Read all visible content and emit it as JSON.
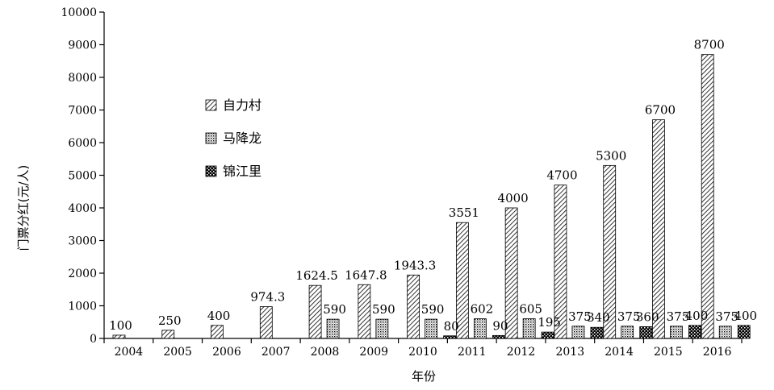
{
  "chart_data": {
    "type": "bar",
    "title": "",
    "xlabel": "年份",
    "ylabel": "门票分红(元/人)",
    "ylim": [
      0,
      10000
    ],
    "yticks": [
      0,
      1000,
      2000,
      3000,
      4000,
      5000,
      6000,
      7000,
      8000,
      9000,
      10000
    ],
    "categories": [
      "2004",
      "2005",
      "2006",
      "2007",
      "2008",
      "2009",
      "2010",
      "2011",
      "2012",
      "2013",
      "2014",
      "2015",
      "2016"
    ],
    "legend_position": "upper-left",
    "grid": false,
    "series": [
      {
        "name": "自力村",
        "pattern": "diagonal-hatch",
        "values": [
          100,
          250,
          400,
          974.3,
          1624.5,
          1647.8,
          1943.3,
          3551,
          4000,
          4700,
          5300,
          6700,
          8700
        ],
        "labels": [
          "100",
          "250",
          "400",
          "974.3",
          "1624.5",
          "1647.8",
          "1943.3",
          "3551",
          "4000",
          "4700",
          "5300",
          "6700",
          "8700"
        ]
      },
      {
        "name": "马降龙",
        "pattern": "light-dots",
        "values": [
          null,
          null,
          null,
          null,
          590,
          590,
          590,
          602,
          605,
          375,
          375,
          375,
          375
        ],
        "labels": [
          "",
          "",
          "",
          "",
          "590",
          "590",
          "590",
          "602",
          "605",
          "375",
          "375",
          "375",
          "375"
        ]
      },
      {
        "name": "锦江里",
        "pattern": "dark-checker",
        "values": [
          null,
          null,
          null,
          null,
          null,
          null,
          80,
          90,
          195,
          340,
          360,
          400,
          400
        ],
        "labels": [
          "",
          "",
          "",
          "",
          "",
          "",
          "80",
          "90",
          "195",
          "340",
          "360",
          "400",
          "400"
        ]
      }
    ]
  }
}
